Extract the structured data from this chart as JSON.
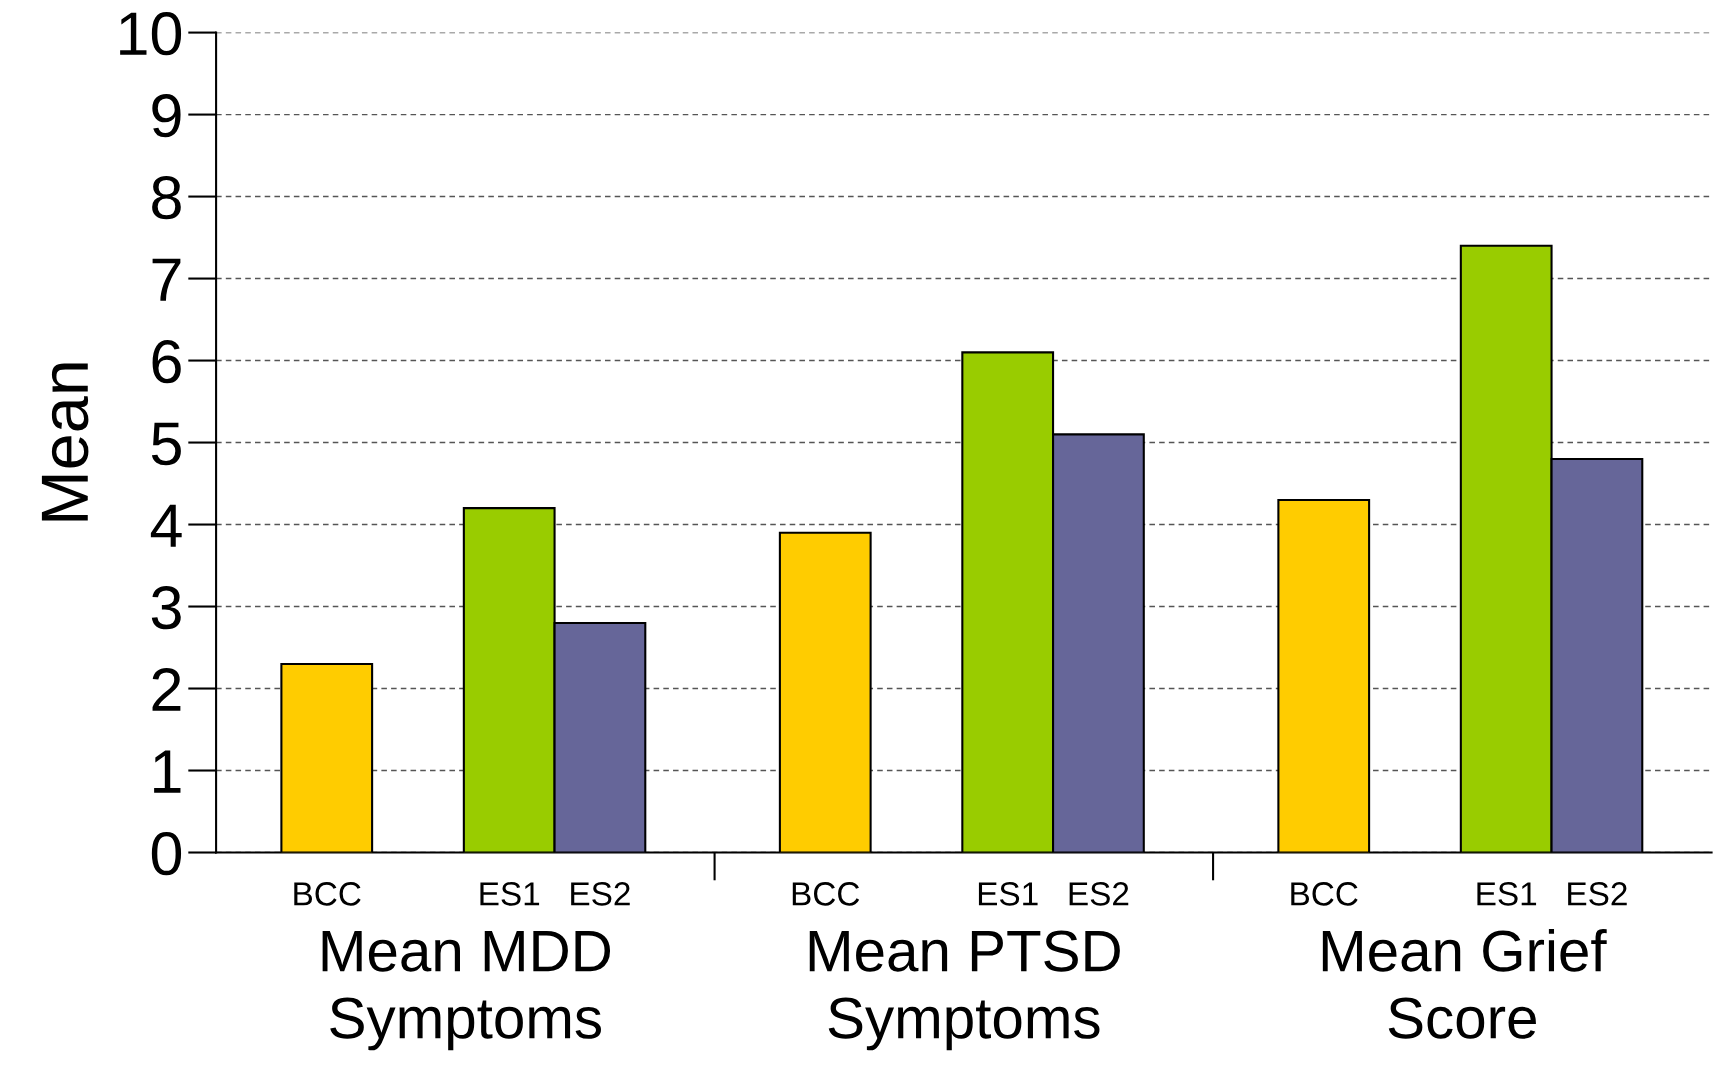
{
  "chart_data": {
    "type": "bar",
    "ylabel": "Mean",
    "categories": [
      "Mean MDD\nSymptoms",
      "Mean PTSD\nSymptoms",
      "Mean Grief\nScore"
    ],
    "series": [
      {
        "name": "BCC",
        "color": "#ffcc00",
        "values": [
          2.3,
          3.9,
          4.3
        ]
      },
      {
        "name": "ES1",
        "color": "#99cc00",
        "values": [
          4.2,
          6.1,
          7.4
        ]
      },
      {
        "name": "ES2",
        "color": "#666699",
        "values": [
          2.8,
          5.1,
          4.8
        ]
      }
    ],
    "ylim": [
      0,
      10
    ],
    "yticks": [
      0,
      1,
      2,
      3,
      4,
      5,
      6,
      7,
      8,
      9,
      10
    ],
    "grid": "y",
    "legend": false
  }
}
